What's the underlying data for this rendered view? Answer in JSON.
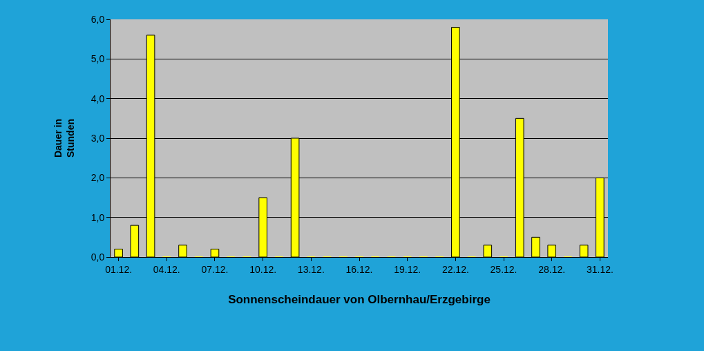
{
  "chart_data": {
    "type": "bar",
    "xlabel": "Sonnenscheindauer von Olbernhau/Erzgebirge",
    "ylabel": "Dauer in\nStunden",
    "categories": [
      "01.12.",
      null,
      null,
      "04.12.",
      null,
      null,
      "07.12.",
      null,
      null,
      "10.12.",
      null,
      null,
      "13.12.",
      null,
      null,
      "16.12.",
      null,
      null,
      "19.12.",
      null,
      null,
      "22.12.",
      null,
      null,
      "25.12.",
      null,
      null,
      "28.12.",
      null,
      null,
      "31.12."
    ],
    "values": [
      0.2,
      0.8,
      5.6,
      0,
      0.3,
      0,
      0.2,
      0,
      0,
      1.5,
      0,
      3.0,
      0,
      0,
      0,
      0,
      0,
      0,
      0,
      0,
      0,
      5.8,
      0,
      0.3,
      0,
      3.5,
      0.5,
      0.3,
      0,
      0.3,
      2.0
    ],
    "color": "#ffff00",
    "ylim": [
      0,
      6
    ],
    "yticks": [
      {
        "value": 0,
        "label": "0,0"
      },
      {
        "value": 1,
        "label": "1,0"
      },
      {
        "value": 2,
        "label": "2,0"
      },
      {
        "value": 3,
        "label": "3,0"
      },
      {
        "value": 4,
        "label": "4,0"
      },
      {
        "value": 5,
        "label": "5,0"
      },
      {
        "value": 6,
        "label": "6,0"
      }
    ],
    "grid": "y"
  }
}
